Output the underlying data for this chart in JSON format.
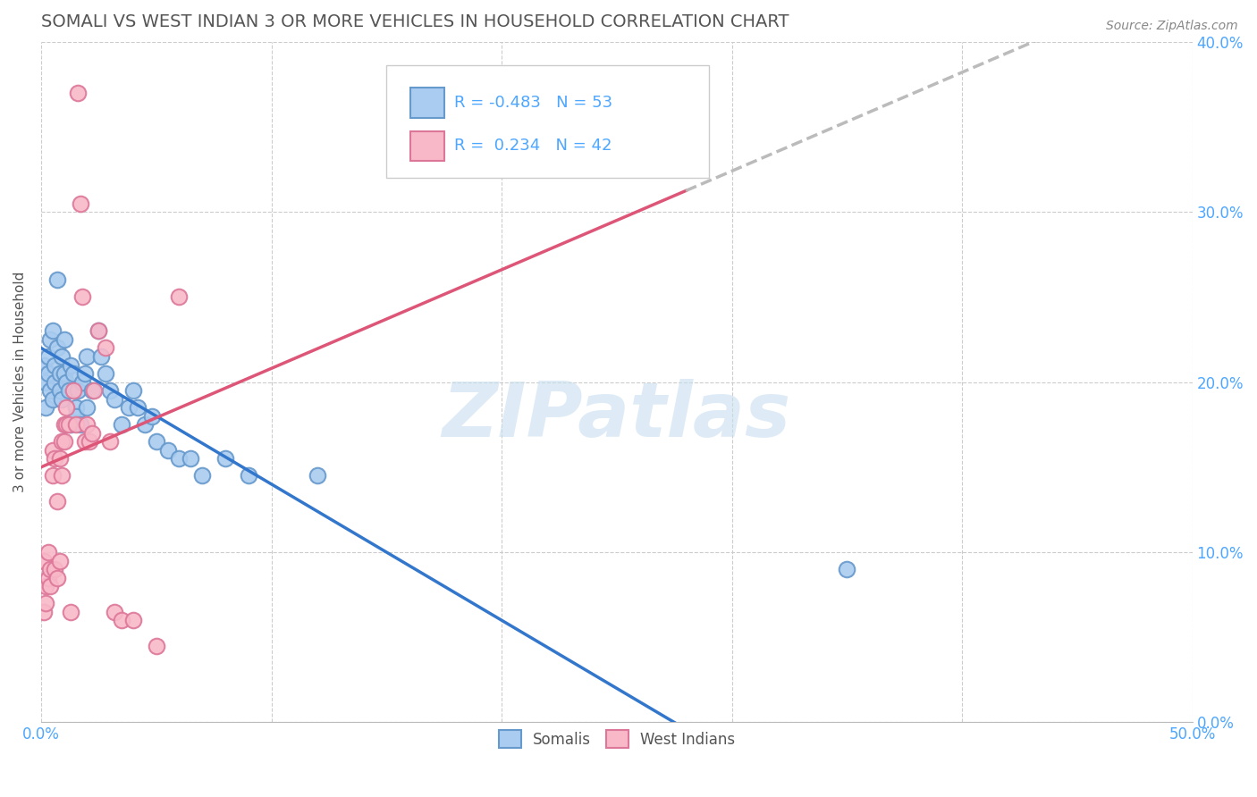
{
  "title": "SOMALI VS WEST INDIAN 3 OR MORE VEHICLES IN HOUSEHOLD CORRELATION CHART",
  "source_text": "Source: ZipAtlas.com",
  "ylabel": "3 or more Vehicles in Household",
  "xlim": [
    0.0,
    0.5
  ],
  "ylim": [
    0.0,
    0.4
  ],
  "xticks": [
    0.0,
    0.1,
    0.2,
    0.3,
    0.4,
    0.5
  ],
  "yticks": [
    0.0,
    0.1,
    0.2,
    0.3,
    0.4
  ],
  "xtick_labels_show": [
    "0.0%",
    "",
    "",
    "",
    "",
    "50.0%"
  ],
  "ytick_labels_right": [
    "0.0%",
    "10.0%",
    "20.0%",
    "30.0%",
    "40.0%"
  ],
  "somali_R": -0.483,
  "somali_N": 53,
  "westindian_R": 0.234,
  "westindian_N": 42,
  "somali_color": "#aaccf0",
  "somali_edge_color": "#6699cc",
  "somali_line_color": "#3377cc",
  "westindian_color": "#f8b8c8",
  "westindian_edge_color": "#dd7799",
  "westindian_line_color": "#dd5577",
  "westindian_line_far_color": "#cccccc",
  "background_color": "#ffffff",
  "grid_color": "#cccccc",
  "watermark": "ZIPatlas",
  "watermark_color": "#c8dff0",
  "title_fontsize": 14,
  "axis_label_fontsize": 11,
  "tick_fontsize": 12,
  "legend_fontsize": 13,
  "source_fontsize": 10,
  "somali_line_intercept": 0.22,
  "somali_line_slope": -0.4,
  "westindian_line_intercept": 0.15,
  "westindian_line_slope": 0.29,
  "somali_dots": [
    [
      0.001,
      0.21
    ],
    [
      0.002,
      0.2
    ],
    [
      0.002,
      0.185
    ],
    [
      0.003,
      0.215
    ],
    [
      0.003,
      0.205
    ],
    [
      0.004,
      0.225
    ],
    [
      0.004,
      0.195
    ],
    [
      0.005,
      0.23
    ],
    [
      0.005,
      0.19
    ],
    [
      0.006,
      0.2
    ],
    [
      0.006,
      0.21
    ],
    [
      0.007,
      0.26
    ],
    [
      0.007,
      0.22
    ],
    [
      0.008,
      0.205
    ],
    [
      0.008,
      0.195
    ],
    [
      0.009,
      0.215
    ],
    [
      0.009,
      0.19
    ],
    [
      0.01,
      0.225
    ],
    [
      0.01,
      0.205
    ],
    [
      0.011,
      0.2
    ],
    [
      0.012,
      0.195
    ],
    [
      0.013,
      0.175
    ],
    [
      0.013,
      0.21
    ],
    [
      0.014,
      0.205
    ],
    [
      0.015,
      0.185
    ],
    [
      0.015,
      0.18
    ],
    [
      0.016,
      0.195
    ],
    [
      0.017,
      0.175
    ],
    [
      0.018,
      0.2
    ],
    [
      0.019,
      0.205
    ],
    [
      0.02,
      0.215
    ],
    [
      0.02,
      0.185
    ],
    [
      0.022,
      0.195
    ],
    [
      0.025,
      0.23
    ],
    [
      0.026,
      0.215
    ],
    [
      0.028,
      0.205
    ],
    [
      0.03,
      0.195
    ],
    [
      0.032,
      0.19
    ],
    [
      0.035,
      0.175
    ],
    [
      0.038,
      0.185
    ],
    [
      0.04,
      0.195
    ],
    [
      0.042,
      0.185
    ],
    [
      0.045,
      0.175
    ],
    [
      0.048,
      0.18
    ],
    [
      0.05,
      0.165
    ],
    [
      0.055,
      0.16
    ],
    [
      0.06,
      0.155
    ],
    [
      0.065,
      0.155
    ],
    [
      0.07,
      0.145
    ],
    [
      0.08,
      0.155
    ],
    [
      0.09,
      0.145
    ],
    [
      0.12,
      0.145
    ],
    [
      0.35,
      0.09
    ]
  ],
  "westindian_dots": [
    [
      0.001,
      0.065
    ],
    [
      0.001,
      0.095
    ],
    [
      0.002,
      0.08
    ],
    [
      0.002,
      0.07
    ],
    [
      0.003,
      0.085
    ],
    [
      0.003,
      0.1
    ],
    [
      0.004,
      0.09
    ],
    [
      0.004,
      0.08
    ],
    [
      0.005,
      0.145
    ],
    [
      0.005,
      0.16
    ],
    [
      0.006,
      0.09
    ],
    [
      0.006,
      0.155
    ],
    [
      0.007,
      0.13
    ],
    [
      0.007,
      0.085
    ],
    [
      0.008,
      0.095
    ],
    [
      0.008,
      0.155
    ],
    [
      0.009,
      0.145
    ],
    [
      0.009,
      0.165
    ],
    [
      0.01,
      0.165
    ],
    [
      0.01,
      0.175
    ],
    [
      0.011,
      0.185
    ],
    [
      0.011,
      0.175
    ],
    [
      0.012,
      0.175
    ],
    [
      0.013,
      0.065
    ],
    [
      0.014,
      0.195
    ],
    [
      0.015,
      0.175
    ],
    [
      0.016,
      0.37
    ],
    [
      0.017,
      0.305
    ],
    [
      0.018,
      0.25
    ],
    [
      0.019,
      0.165
    ],
    [
      0.02,
      0.175
    ],
    [
      0.021,
      0.165
    ],
    [
      0.022,
      0.17
    ],
    [
      0.023,
      0.195
    ],
    [
      0.025,
      0.23
    ],
    [
      0.028,
      0.22
    ],
    [
      0.03,
      0.165
    ],
    [
      0.032,
      0.065
    ],
    [
      0.035,
      0.06
    ],
    [
      0.04,
      0.06
    ],
    [
      0.05,
      0.045
    ],
    [
      0.06,
      0.25
    ]
  ]
}
